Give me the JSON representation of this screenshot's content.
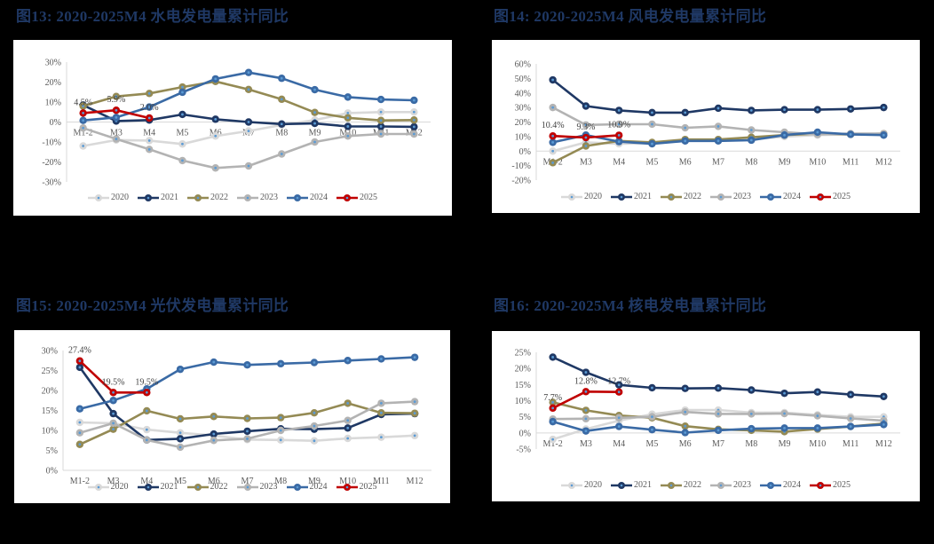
{
  "page": {
    "background": "#000000"
  },
  "series_style": {
    "2020": {
      "color": "#d9d9d9"
    },
    "2021": {
      "color": "#1f3864"
    },
    "2022": {
      "color": "#948a54"
    },
    "2023": {
      "color": "#b3b3b3"
    },
    "2024": {
      "color": "#3a6aa5"
    },
    "2025": {
      "color": "#c00000"
    },
    "marker_center": "#5b9bd5"
  },
  "figures": [
    {
      "id": "fig13",
      "title": "图13:  2020-2025M4 水电发电量累计同比"
    },
    {
      "id": "fig14",
      "title": "图14:  2020-2025M4 风电发电量累计同比"
    },
    {
      "id": "fig15",
      "title": "图15:  2020-2025M4 光伏发电量累计同比"
    },
    {
      "id": "fig16",
      "title": "图16:  2020-2025M4 核电发电量累计同比"
    }
  ],
  "chart_data": [
    {
      "type": "line",
      "title": "图13: 2020-2025M4 水电发电量累计同比",
      "xlabel": "",
      "ylabel": "",
      "categories": [
        "M1-2",
        "M3",
        "M4",
        "M5",
        "M6",
        "M7",
        "M8",
        "M9",
        "M10",
        "M11",
        "M12"
      ],
      "ylim": [
        -30,
        30
      ],
      "yticks": [
        30,
        20,
        10,
        0,
        -10,
        -20,
        -30
      ],
      "ytick_format": "percent",
      "x_labels_at_zero": true,
      "legend_position": "bottom",
      "grid": false,
      "series": [
        {
          "name": "2020",
          "values": [
            -12.0,
            -9.0,
            -9.3,
            -11.0,
            -7.0,
            -4.5,
            -1.5,
            1.0,
            4.5,
            5.0,
            5.0
          ]
        },
        {
          "name": "2021",
          "values": [
            8.5,
            0.5,
            1.0,
            3.8,
            1.4,
            0.0,
            -1.0,
            -0.7,
            -2.2,
            -2.2,
            -2.4
          ]
        },
        {
          "name": "2022",
          "values": [
            8.0,
            12.8,
            14.3,
            17.5,
            20.3,
            16.3,
            11.4,
            4.8,
            2.1,
            0.8,
            1.0
          ]
        },
        {
          "name": "2023",
          "values": [
            -3.0,
            -8.5,
            -13.7,
            -19.3,
            -23.0,
            -22.0,
            -16.0,
            -10.0,
            -7.0,
            -6.0,
            -6.0
          ]
        },
        {
          "name": "2024",
          "values": [
            0.8,
            2.3,
            7.5,
            14.9,
            21.6,
            24.8,
            21.9,
            16.2,
            12.5,
            11.3,
            10.9
          ]
        },
        {
          "name": "2025",
          "values": [
            4.5,
            5.9,
            2.0
          ]
        }
      ],
      "annotations": [
        {
          "series": "2025",
          "index": 0,
          "text": "4.5%"
        },
        {
          "series": "2025",
          "index": 1,
          "text": "5.9%"
        },
        {
          "series": "2025",
          "index": 2,
          "text": "2.0%"
        }
      ]
    },
    {
      "type": "line",
      "title": "图14: 2020-2025M4 风电发电量累计同比",
      "xlabel": "",
      "ylabel": "",
      "categories": [
        "M1-2",
        "M3",
        "M4",
        "M5",
        "M6",
        "M7",
        "M8",
        "M9",
        "M10",
        "M11",
        "M12"
      ],
      "ylim": [
        -20,
        60
      ],
      "yticks": [
        60,
        50,
        40,
        30,
        20,
        10,
        0,
        -10,
        -20
      ],
      "ytick_format": "percent",
      "x_labels_at_zero": true,
      "legend_position": "bottom",
      "grid": false,
      "series": [
        {
          "name": "2020",
          "values": [
            0.0,
            6.0,
            5.0,
            5.5,
            7.0,
            7.5,
            8.0,
            10.0,
            11.0,
            11.5,
            11.5
          ]
        },
        {
          "name": "2021",
          "values": [
            49.0,
            31.0,
            28.0,
            26.5,
            26.5,
            29.5,
            28.0,
            28.5,
            28.5,
            29.0,
            30.0
          ]
        },
        {
          "name": "2022",
          "values": [
            -8.0,
            3.5,
            7.0,
            6.0,
            8.0,
            8.0,
            9.5,
            11.0,
            12.0,
            11.5,
            12.0
          ]
        },
        {
          "name": "2023",
          "values": [
            30.0,
            18.0,
            18.5,
            18.5,
            16.0,
            17.0,
            14.5,
            13.0,
            11.5,
            12.0,
            12.0
          ]
        },
        {
          "name": "2024",
          "values": [
            6.0,
            11.0,
            6.5,
            5.0,
            7.0,
            7.0,
            7.5,
            11.0,
            13.0,
            11.5,
            11.0
          ]
        },
        {
          "name": "2025",
          "values": [
            10.4,
            9.3,
            10.9
          ]
        }
      ],
      "annotations": [
        {
          "series": "2025",
          "index": 0,
          "text": "10.4%"
        },
        {
          "series": "2025",
          "index": 1,
          "text": "9.3%"
        },
        {
          "series": "2025",
          "index": 2,
          "text": "10.9%"
        }
      ]
    },
    {
      "type": "line",
      "title": "图15: 2020-2025M4 光伏发电量累计同比",
      "xlabel": "",
      "ylabel": "",
      "categories": [
        "M1-2",
        "M3",
        "M4",
        "M5",
        "M6",
        "M7",
        "M8",
        "M9",
        "M10",
        "M11",
        "M12"
      ],
      "ylim": [
        0,
        30
      ],
      "yticks": [
        30,
        25,
        20,
        15,
        10,
        5,
        0
      ],
      "ytick_format": "percent",
      "x_labels_at_zero": false,
      "legend_position": "bottom",
      "grid": false,
      "series": [
        {
          "name": "2020",
          "values": [
            12.0,
            11.8,
            10.2,
            9.4,
            8.7,
            7.7,
            7.6,
            7.4,
            8.0,
            8.3,
            8.7
          ]
        },
        {
          "name": "2021",
          "values": [
            25.8,
            14.2,
            7.6,
            7.9,
            9.1,
            9.8,
            10.4,
            10.3,
            10.6,
            14.0,
            14.2
          ]
        },
        {
          "name": "2022",
          "values": [
            6.5,
            10.3,
            14.9,
            12.9,
            13.5,
            13.0,
            13.2,
            14.4,
            16.8,
            14.4,
            14.3
          ]
        },
        {
          "name": "2023",
          "values": [
            9.4,
            11.8,
            7.6,
            5.8,
            7.5,
            7.9,
            10.0,
            11.1,
            12.5,
            16.8,
            17.2
          ]
        },
        {
          "name": "2024",
          "values": [
            15.4,
            17.5,
            20.4,
            25.3,
            27.1,
            26.4,
            26.7,
            27.0,
            27.5,
            27.9,
            28.3
          ]
        },
        {
          "name": "2025",
          "values": [
            27.4,
            19.5,
            19.5
          ]
        }
      ],
      "annotations": [
        {
          "series": "2025",
          "index": 0,
          "text": "27.4%"
        },
        {
          "series": "2025",
          "index": 1,
          "text": "19.5%"
        },
        {
          "series": "2025",
          "index": 2,
          "text": "19.5%"
        }
      ]
    },
    {
      "type": "line",
      "title": "图16: 2020-2025M4 核电发电量累计同比",
      "xlabel": "",
      "ylabel": "",
      "categories": [
        "M1-2",
        "M3",
        "M4",
        "M5",
        "M6",
        "M7",
        "M8",
        "M9",
        "M10",
        "M11",
        "M12"
      ],
      "ylim": [
        -5,
        25
      ],
      "yticks": [
        25,
        20,
        15,
        10,
        5,
        0,
        -5
      ],
      "ytick_format": "percent",
      "x_labels_at_zero": true,
      "legend_position": "bottom",
      "grid": false,
      "series": [
        {
          "name": "2020",
          "values": [
            -2.0,
            1.2,
            3.8,
            5.8,
            7.1,
            7.1,
            6.3,
            6.3,
            5.6,
            5.0,
            5.0
          ]
        },
        {
          "name": "2021",
          "values": [
            23.5,
            18.8,
            14.9,
            14.0,
            13.8,
            13.9,
            13.3,
            12.3,
            12.7,
            11.9,
            11.3
          ]
        },
        {
          "name": "2022",
          "values": [
            9.5,
            7.0,
            5.4,
            4.7,
            2.1,
            1.1,
            0.8,
            0.4,
            1.2,
            2.0,
            2.9
          ]
        },
        {
          "name": "2023",
          "values": [
            4.3,
            4.4,
            4.7,
            5.0,
            6.5,
            5.9,
            5.9,
            6.0,
            5.3,
            4.5,
            3.8
          ]
        },
        {
          "name": "2024",
          "values": [
            3.5,
            0.6,
            2.0,
            1.0,
            0.1,
            0.8,
            1.3,
            1.5,
            1.5,
            2.0,
            2.6
          ]
        },
        {
          "name": "2025",
          "values": [
            7.7,
            12.8,
            12.7
          ]
        }
      ],
      "annotations": [
        {
          "series": "2025",
          "index": 0,
          "text": "7.7%"
        },
        {
          "series": "2025",
          "index": 1,
          "text": "12.8%"
        },
        {
          "series": "2025",
          "index": 2,
          "text": "12.7%"
        }
      ]
    }
  ]
}
